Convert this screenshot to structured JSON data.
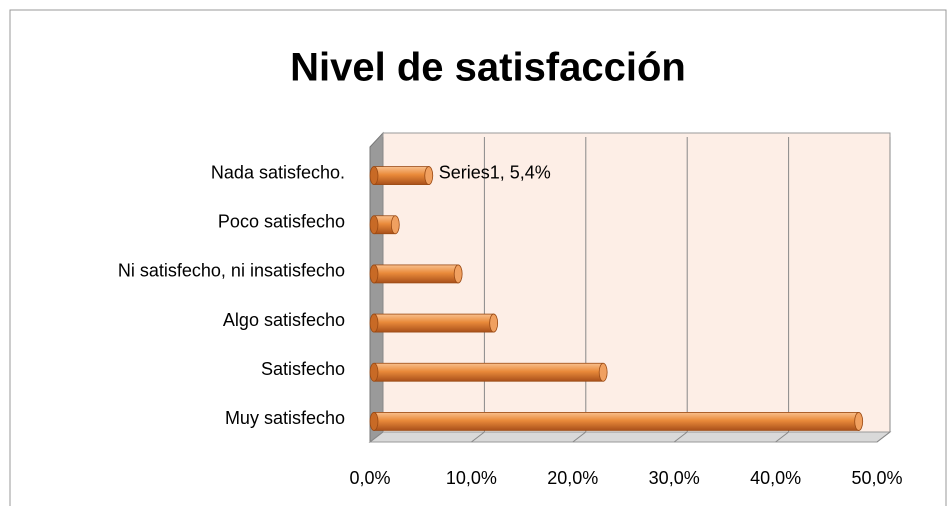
{
  "chart_data": {
    "type": "bar",
    "orientation": "horizontal",
    "title": "Nivel de satisfacción",
    "categories": [
      "Nada satisfecho.",
      "Poco satisfecho",
      "Ni satisfecho, ni insatisfecho",
      "Algo satisfecho",
      "Satisfecho",
      "Muy satisfecho"
    ],
    "series": [
      {
        "name": "Series1",
        "color": "#e98a3a",
        "values": [
          5.4,
          2.1,
          8.3,
          11.8,
          22.6,
          47.8
        ],
        "value_labels": [
          "Series1, 5,4%",
          null,
          null,
          null,
          null,
          null
        ]
      }
    ],
    "xlim": [
      0,
      50
    ],
    "xticks": [
      {
        "value": 0,
        "label": "0,0%"
      },
      {
        "value": 10,
        "label": "10,0%"
      },
      {
        "value": 20,
        "label": "20,0%"
      },
      {
        "value": 30,
        "label": "30,0%"
      },
      {
        "value": 40,
        "label": "40,0%"
      },
      {
        "value": 50,
        "label": "50,0%"
      }
    ],
    "grid": true
  }
}
